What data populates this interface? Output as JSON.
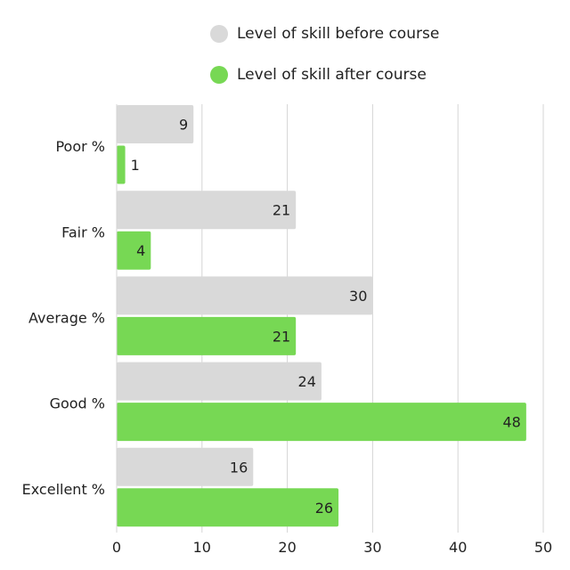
{
  "chart_data": {
    "type": "bar",
    "orientation": "horizontal",
    "title": "",
    "xlabel": "",
    "ylabel": "",
    "categories": [
      "Poor %",
      "Fair %",
      "Average %",
      "Good %",
      "Excellent %"
    ],
    "series": [
      {
        "name": "Level of skill before course",
        "color": "#d9d9d9",
        "values": [
          9,
          21,
          30,
          24,
          16
        ]
      },
      {
        "name": "Level of skill after course",
        "color": "#77d854",
        "values": [
          1,
          4,
          21,
          48,
          26
        ]
      }
    ],
    "xlim": [
      0,
      50
    ],
    "xticks": [
      "0",
      "10",
      "20",
      "30",
      "40",
      "50"
    ],
    "grid": true,
    "legend_position": "top"
  }
}
